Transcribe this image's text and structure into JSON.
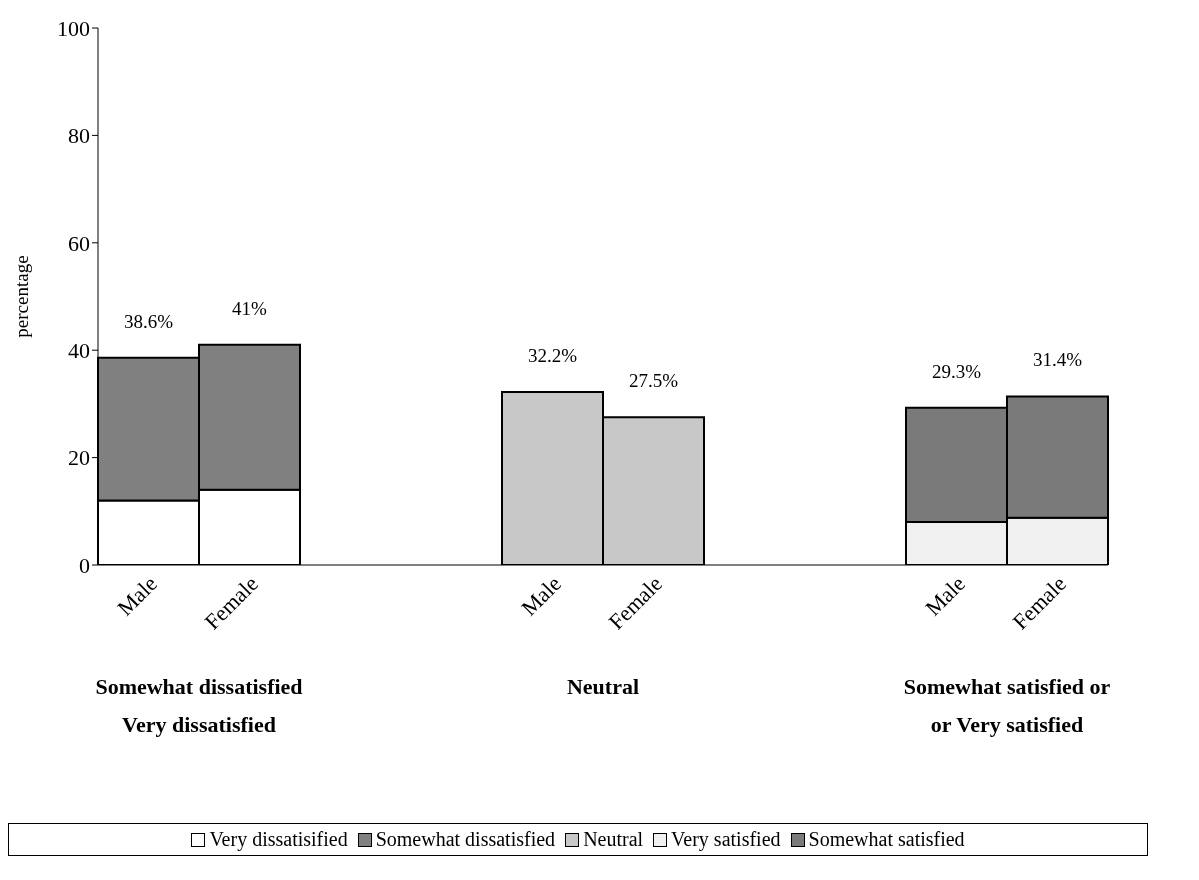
{
  "chart_data": {
    "type": "bar",
    "stacked": true,
    "ylabel": "percentage",
    "categories": [
      "Male",
      "Female",
      null,
      null,
      "Male",
      "Female",
      null,
      null,
      "Male",
      "Female"
    ],
    "series": [
      {
        "name": "Very dissatisified",
        "color": "#ffffff",
        "values": [
          12,
          14,
          null,
          null,
          null,
          null,
          null,
          null,
          null,
          null
        ]
      },
      {
        "name": "Somewhat dissatisfied",
        "color": "#808080",
        "values": [
          26.6,
          27,
          null,
          null,
          null,
          null,
          null,
          null,
          null,
          null
        ]
      },
      {
        "name": "Neutral",
        "color": "#c8c8c8",
        "values": [
          null,
          null,
          null,
          null,
          32.2,
          27.5,
          null,
          null,
          null,
          null
        ]
      },
      {
        "name": "Very satisfied",
        "color": "#f0f0f0",
        "values": [
          null,
          null,
          null,
          null,
          null,
          null,
          null,
          null,
          8,
          8.8
        ]
      },
      {
        "name": "Somewhat satisfied",
        "color": "#7a7a7a",
        "values": [
          null,
          null,
          null,
          null,
          null,
          null,
          null,
          null,
          21.3,
          22.6
        ]
      }
    ],
    "totals": [
      "38.6%",
      "41%",
      null,
      null,
      "32.2%",
      "27.5%",
      null,
      null,
      "29.3%",
      "31.4%"
    ],
    "ylim": [
      0,
      100
    ],
    "yticks": [
      0,
      20,
      40,
      60,
      80,
      100
    ],
    "grid": false,
    "legend": "bottom",
    "annotations": [
      "Somewhat dissatisfied\nVery dissatisfied",
      "Neutral",
      "Somewhat satisfied or\nor Very satisfied"
    ]
  }
}
